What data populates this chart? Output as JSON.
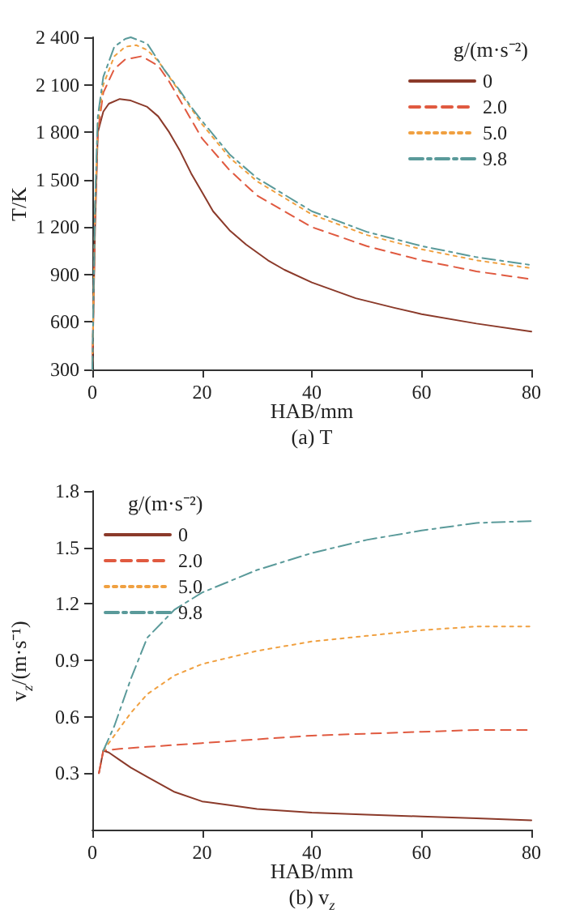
{
  "chart_data": [
    {
      "type": "line",
      "title": "(a) T",
      "xlabel": "HAB/mm",
      "ylabel": "T/K",
      "legend_title": "g/(m·s⁻²)",
      "legend": "top right",
      "grid": false,
      "marker": "none",
      "xlim": [
        0,
        80
      ],
      "xticks": [
        0,
        20,
        40,
        60,
        80
      ],
      "ylim": [
        300,
        2400
      ],
      "yticks": [
        300,
        600,
        900,
        {
          "value": 1200,
          "label": "1 200"
        },
        {
          "value": 1500,
          "label": "1 500"
        },
        {
          "value": 1800,
          "label": "1 800"
        },
        {
          "value": 2100,
          "label": "2 100"
        },
        {
          "value": 2400,
          "label": "2 400"
        }
      ],
      "series": [
        {
          "name": "0",
          "color": "#8b3a2a",
          "line_style": "solid",
          "x": [
            0,
            0.5,
            1,
            2,
            3,
            5,
            7,
            10,
            12,
            14,
            16,
            18,
            20,
            22,
            25,
            28,
            32,
            35,
            40,
            48,
            55,
            60,
            70,
            80
          ],
          "values": [
            300,
            1200,
            1800,
            1930,
            1980,
            2010,
            2000,
            1960,
            1900,
            1800,
            1680,
            1540,
            1420,
            1300,
            1180,
            1090,
            990,
            930,
            850,
            750,
            690,
            650,
            590,
            540
          ]
        },
        {
          "name": "2.0",
          "color": "#e05a40",
          "line_style": "dashed",
          "x": [
            0,
            0.5,
            1,
            2,
            4,
            6,
            9,
            12,
            14,
            16,
            18,
            20,
            25,
            30,
            40,
            50,
            60,
            70,
            80
          ],
          "values": [
            300,
            1300,
            1800,
            2050,
            2200,
            2260,
            2280,
            2220,
            2120,
            2000,
            1880,
            1760,
            1560,
            1400,
            1200,
            1080,
            990,
            920,
            870
          ]
        },
        {
          "name": "5.0",
          "color": "#f0a040",
          "line_style": "dotted",
          "x": [
            0,
            0.5,
            1,
            2,
            4,
            6,
            8,
            10,
            12,
            14,
            16,
            18,
            20,
            25,
            30,
            40,
            50,
            60,
            70,
            80
          ],
          "values": [
            300,
            1300,
            1850,
            2100,
            2280,
            2340,
            2350,
            2320,
            2250,
            2150,
            2050,
            1950,
            1850,
            1640,
            1490,
            1280,
            1150,
            1060,
            990,
            940
          ]
        },
        {
          "name": "9.8",
          "color": "#5a9a9a",
          "line_style": "dashdot",
          "x": [
            0,
            0.5,
            1,
            2,
            4,
            6,
            7,
            10,
            13,
            16,
            18,
            20,
            25,
            30,
            40,
            50,
            60,
            70,
            80
          ],
          "values": [
            300,
            1350,
            1900,
            2150,
            2340,
            2390,
            2400,
            2360,
            2200,
            2060,
            1960,
            1870,
            1660,
            1510,
            1300,
            1170,
            1080,
            1010,
            960
          ]
        }
      ]
    },
    {
      "type": "line",
      "title": "(b) v$_{z}$",
      "xlabel": "HAB/mm",
      "ylabel": "v$_{z}$/(m·s⁻¹)",
      "legend_title": "g/(m·s⁻²)",
      "legend": "top left",
      "grid": false,
      "marker": "none",
      "xlim": [
        0,
        80
      ],
      "xticks": [
        0,
        20,
        40,
        60,
        80
      ],
      "ylim": [
        0,
        1.8
      ],
      "yticks": [
        0.3,
        0.6,
        0.9,
        1.2,
        1.5,
        1.8
      ],
      "series": [
        {
          "name": "0",
          "color": "#8b3a2a",
          "line_style": "solid",
          "x": [
            1.2,
            2,
            3,
            5,
            7,
            10,
            15,
            20,
            25,
            30,
            40,
            50,
            60,
            70,
            80
          ],
          "values": [
            0.3,
            0.42,
            0.41,
            0.37,
            0.33,
            0.28,
            0.2,
            0.15,
            0.13,
            0.11,
            0.09,
            0.08,
            0.07,
            0.06,
            0.05
          ]
        },
        {
          "name": "2.0",
          "color": "#e05a40",
          "line_style": "dashed",
          "x": [
            1.2,
            2,
            5,
            10,
            20,
            30,
            40,
            50,
            60,
            70,
            80
          ],
          "values": [
            0.3,
            0.42,
            0.43,
            0.44,
            0.46,
            0.48,
            0.5,
            0.51,
            0.52,
            0.53,
            0.53
          ]
        },
        {
          "name": "5.0",
          "color": "#f0a040",
          "line_style": "dotted",
          "x": [
            2,
            4,
            7,
            10,
            15,
            20,
            30,
            40,
            50,
            60,
            70,
            80
          ],
          "values": [
            0.42,
            0.5,
            0.62,
            0.72,
            0.82,
            0.88,
            0.95,
            1.0,
            1.03,
            1.06,
            1.08,
            1.08
          ]
        },
        {
          "name": "9.8",
          "color": "#5a9a9a",
          "line_style": "dashdot",
          "x": [
            2,
            4,
            7,
            10,
            15,
            20,
            30,
            40,
            50,
            60,
            70,
            80
          ],
          "values": [
            0.42,
            0.55,
            0.8,
            1.02,
            1.17,
            1.26,
            1.38,
            1.47,
            1.54,
            1.59,
            1.63,
            1.64
          ]
        }
      ]
    }
  ]
}
